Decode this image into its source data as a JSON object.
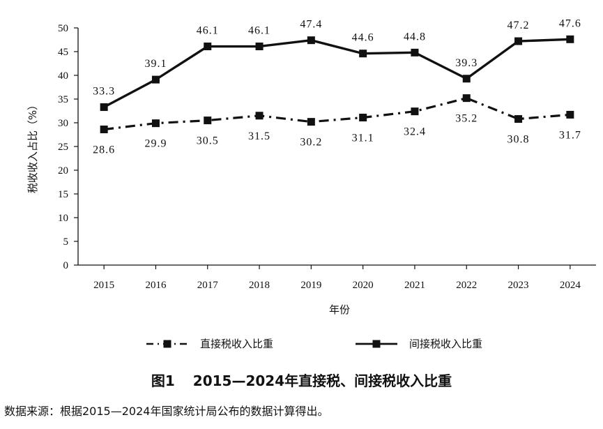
{
  "chart_data": {
    "type": "line",
    "categories": [
      "2015",
      "2016",
      "2017",
      "2018",
      "2019",
      "2020",
      "2021",
      "2022",
      "2023",
      "2024"
    ],
    "series": [
      {
        "name": "直接税收入比重",
        "line_style": "dash-dot",
        "color": "#111111",
        "values": [
          28.6,
          29.9,
          30.5,
          31.5,
          30.2,
          31.1,
          32.4,
          35.2,
          30.8,
          31.7
        ]
      },
      {
        "name": "间接税收入比重",
        "line_style": "solid",
        "color": "#111111",
        "values": [
          33.3,
          39.1,
          46.1,
          46.1,
          47.4,
          44.6,
          44.8,
          39.3,
          47.2,
          47.6
        ]
      }
    ],
    "xlabel": "年份",
    "ylabel": "税收收入占比（%）",
    "ylim": [
      0,
      50
    ],
    "yticks": [
      0,
      5,
      10,
      15,
      20,
      25,
      30,
      35,
      40,
      45,
      50
    ],
    "grid": false,
    "legend": "bottom",
    "marker": "square"
  },
  "caption": {
    "number": "图1",
    "text": "2015—2024年直接税、间接税收入比重"
  },
  "source_note": "数据来源：根据2015—2024年国家统计局公布的数据计算得出。"
}
